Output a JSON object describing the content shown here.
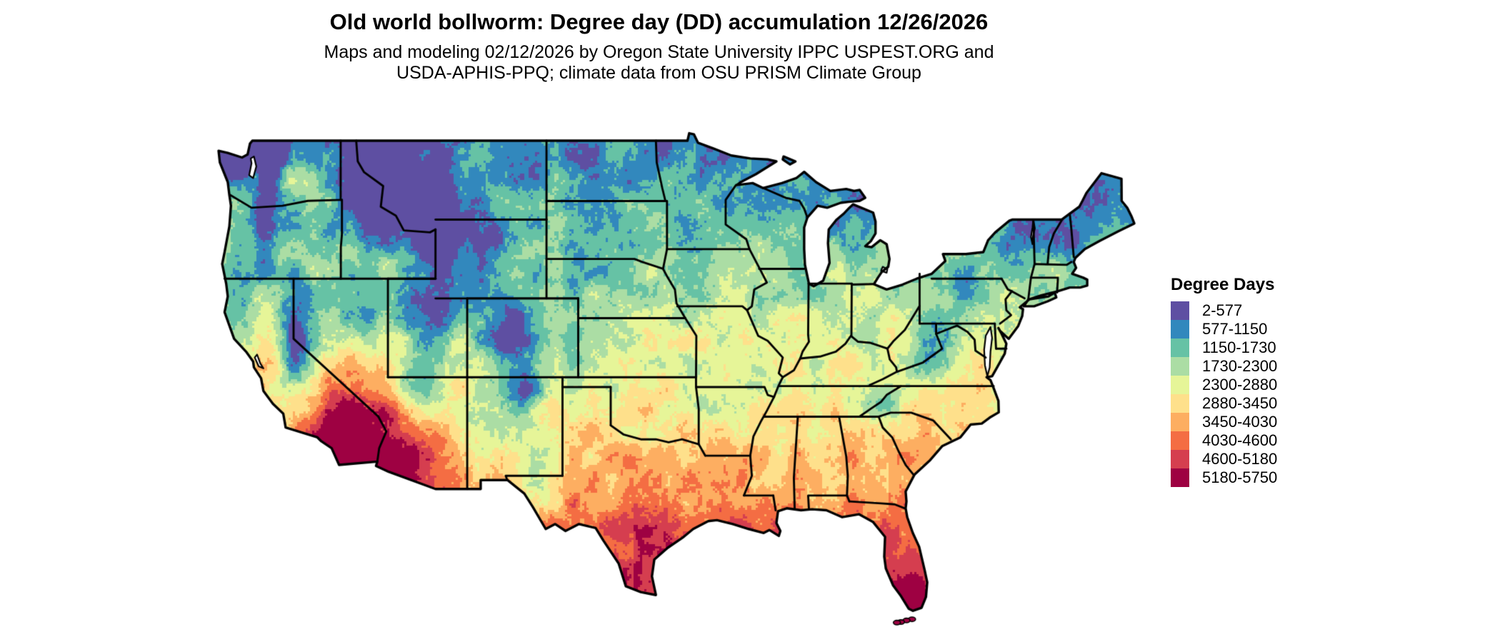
{
  "header": {
    "title": "Old world bollworm: Degree day (DD) accumulation 12/26/2026",
    "subtitle_line1": "Maps and modeling 02/12/2026 by Oregon State University IPPC USPEST.ORG and",
    "subtitle_line2": "USDA-APHIS-PPQ; climate data from OSU PRISM Climate Group"
  },
  "legend": {
    "title": "Degree Days",
    "items": [
      {
        "label": "2-577",
        "color": "#5e4fa2"
      },
      {
        "label": "577-1150",
        "color": "#3288bd"
      },
      {
        "label": "1150-1730",
        "color": "#66c2a5"
      },
      {
        "label": "1730-2300",
        "color": "#abdda4"
      },
      {
        "label": "2300-2880",
        "color": "#e6f598"
      },
      {
        "label": "2880-3450",
        "color": "#fee08b"
      },
      {
        "label": "3450-4030",
        "color": "#fdae61"
      },
      {
        "label": "4030-4600",
        "color": "#f46d43"
      },
      {
        "label": "4600-5180",
        "color": "#d53e4f"
      },
      {
        "label": "5180-5750",
        "color": "#9e0142"
      }
    ]
  },
  "map": {
    "border_color": "#000000",
    "background_color": "#ffffff"
  }
}
